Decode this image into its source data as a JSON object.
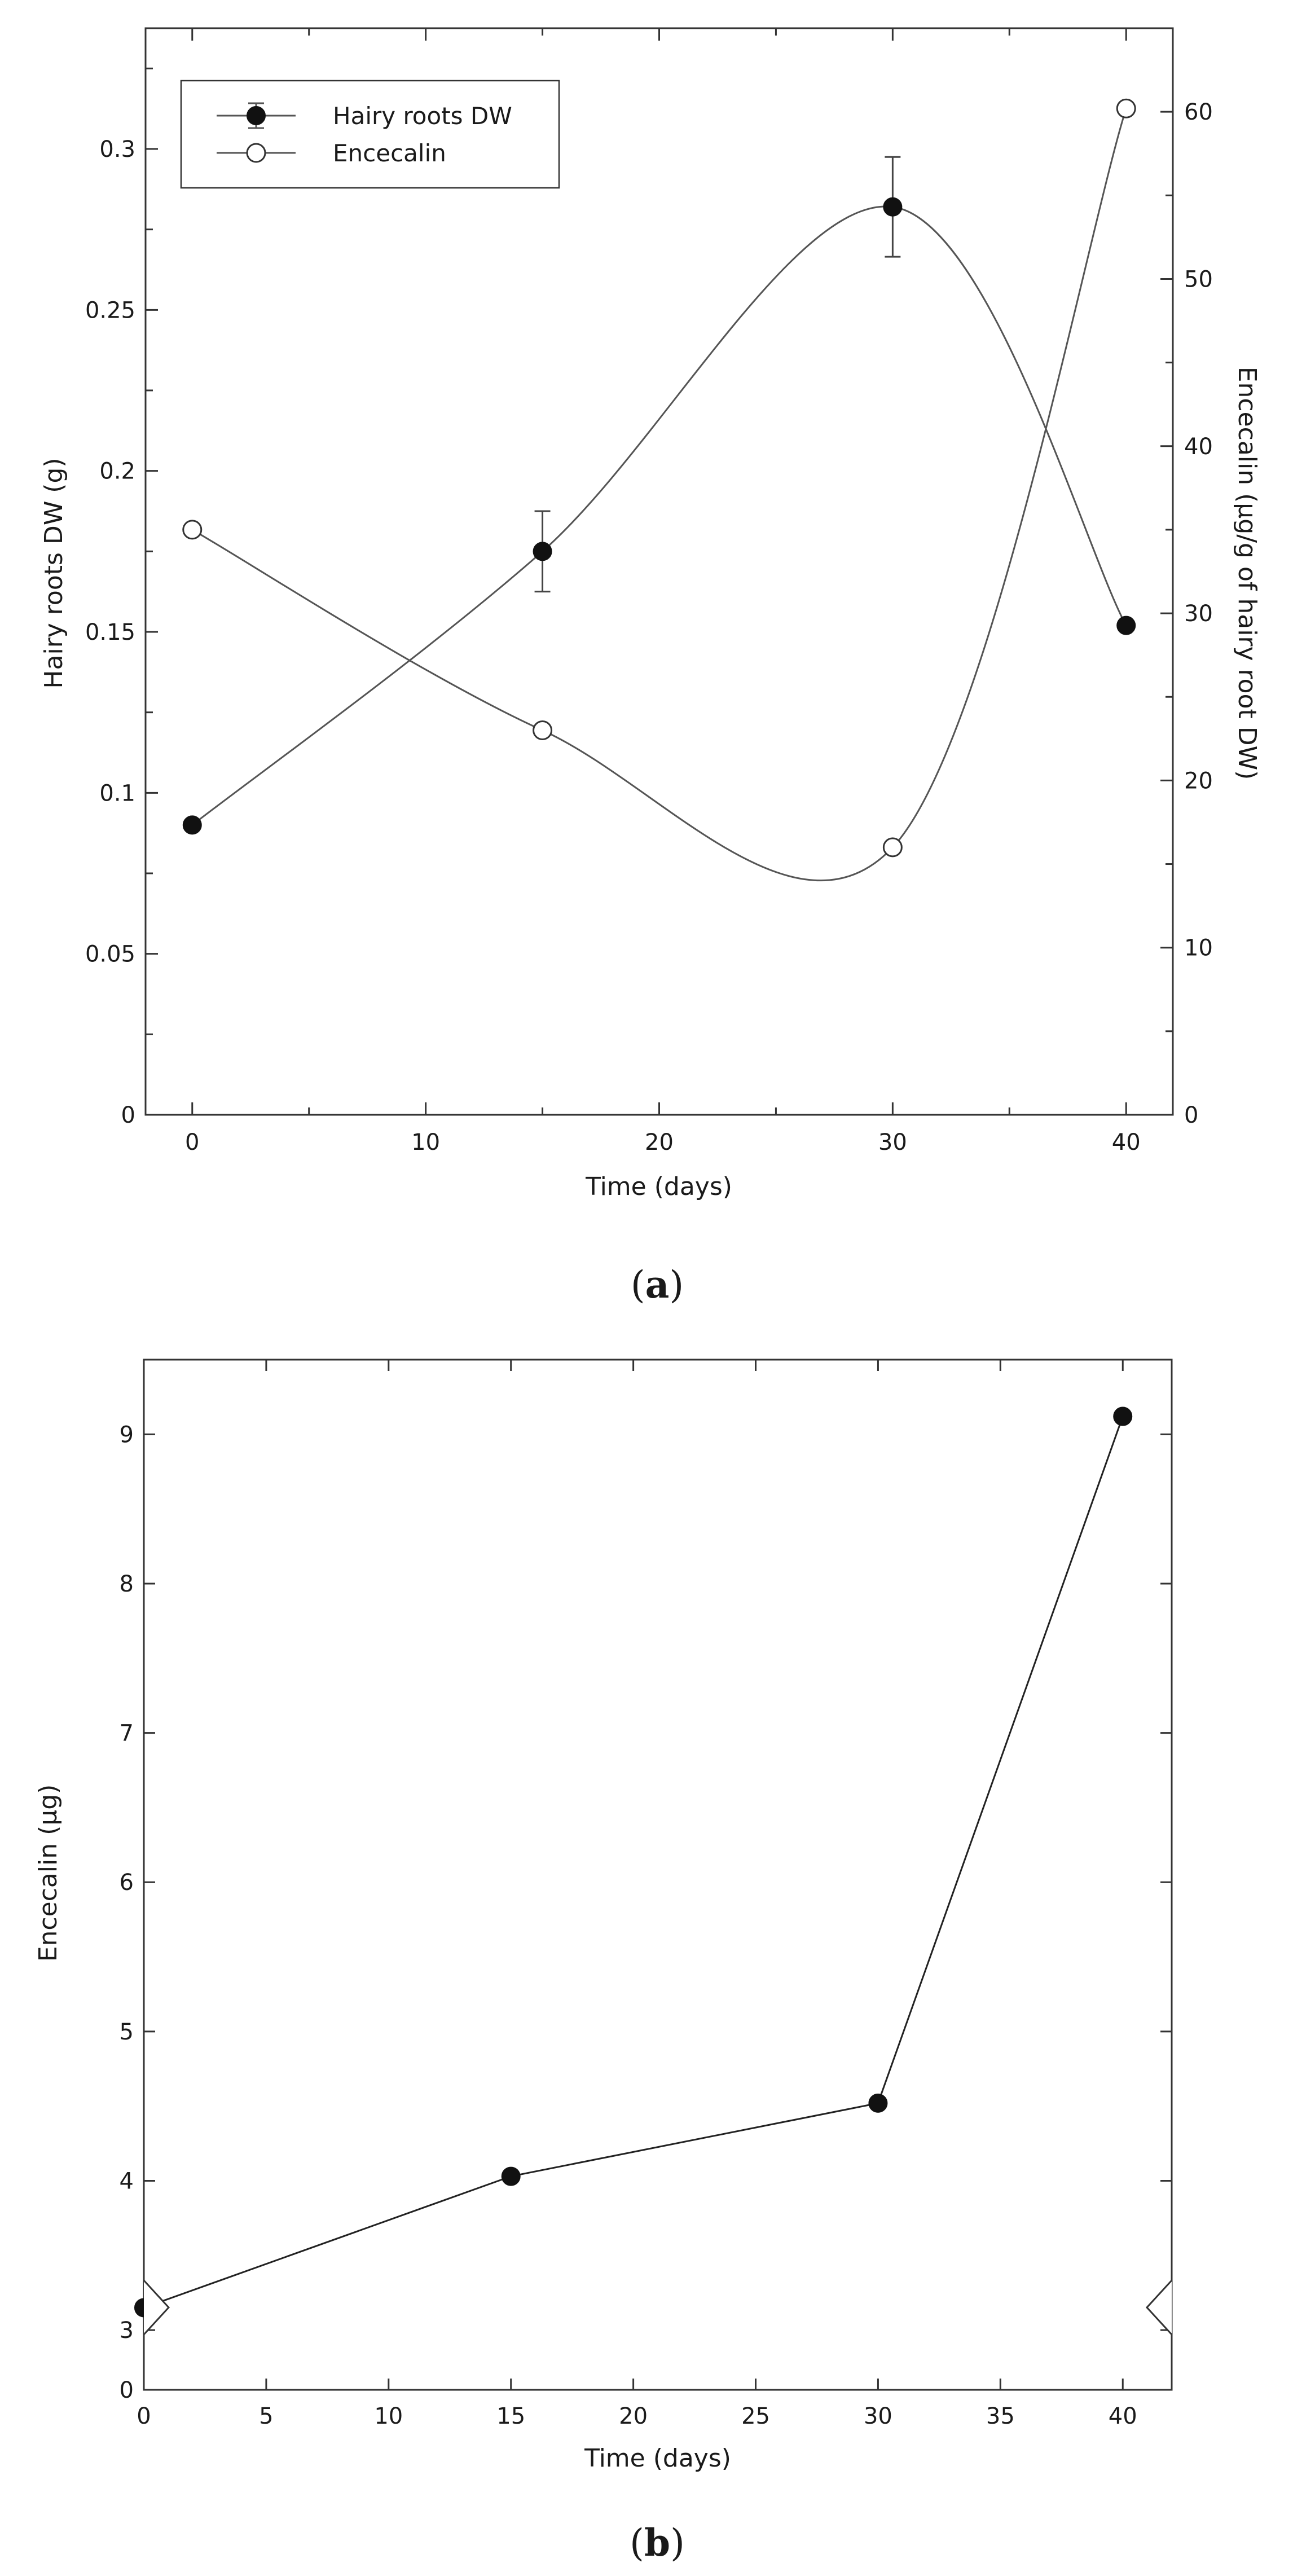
{
  "chart_data": [
    {
      "panel": "(a)",
      "panel_letter": "a",
      "type": "line",
      "title": "",
      "xlabel": "Time (days)",
      "ylabel": "Hairy roots DW (g)",
      "y2label": "Encecalin (µg/g of hairy root DW)",
      "xlim": [
        -2,
        42
      ],
      "ylim": [
        0,
        0.3375
      ],
      "y2lim": [
        0,
        65
      ],
      "x_ticks": [
        0,
        10,
        20,
        30,
        40
      ],
      "y_ticks": [
        "0",
        "0.05",
        "0.1",
        "0.15",
        "0.2",
        "0.25",
        "0.3"
      ],
      "y2_ticks": [
        "0",
        "10",
        "20",
        "30",
        "40",
        "50",
        "60"
      ],
      "grid": false,
      "legend_position": "top-left",
      "legend": [
        "Hairy roots DW",
        "Encecalin"
      ],
      "series": [
        {
          "name": "Hairy roots DW",
          "axis": "left",
          "marker": "filled-circle",
          "x": [
            0,
            15,
            30,
            40
          ],
          "y": [
            0.09,
            0.175,
            0.282,
            0.152
          ],
          "error": [
            0,
            0.0125,
            0.0155,
            0
          ]
        },
        {
          "name": "Encecalin",
          "axis": "right",
          "marker": "open-circle",
          "x": [
            0,
            15,
            30,
            40
          ],
          "y": [
            35,
            23,
            16,
            60.2
          ]
        }
      ]
    },
    {
      "panel": "(b)",
      "panel_letter": "b",
      "type": "line",
      "title": "",
      "xlabel": "Time (days)",
      "ylabel": "Encecalin (µg)",
      "xlim": [
        0,
        42
      ],
      "ylim": [
        2.6,
        9.5
      ],
      "y_axis_break": true,
      "x_ticks": [
        0,
        5,
        10,
        15,
        20,
        25,
        30,
        35,
        40
      ],
      "y_ticks": [
        "0",
        "3",
        "4",
        "5",
        "6",
        "7",
        "8",
        "9"
      ],
      "grid": false,
      "series": [
        {
          "name": "",
          "marker": "filled-circle",
          "x": [
            0,
            15,
            30,
            40
          ],
          "y": [
            3.15,
            4.03,
            4.52,
            9.12
          ]
        }
      ]
    }
  ]
}
